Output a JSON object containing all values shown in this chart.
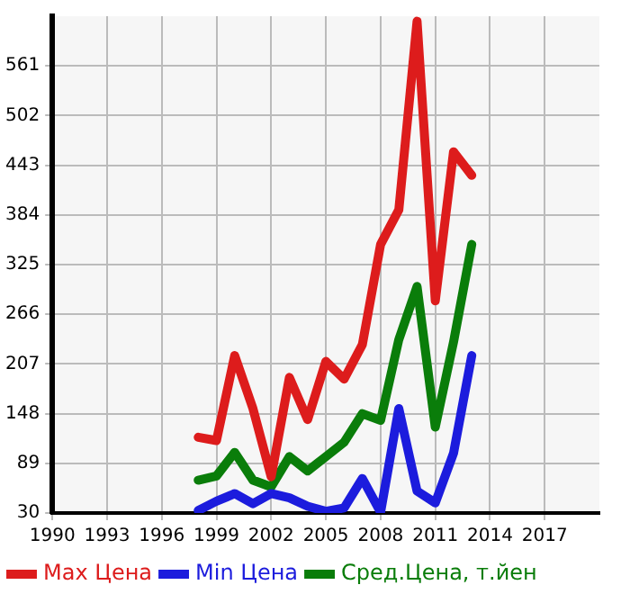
{
  "chart_data": {
    "type": "line",
    "x": [
      1998,
      1999,
      2000,
      2001,
      2002,
      2003,
      2004,
      2005,
      2006,
      2007,
      2008,
      2009,
      2010,
      2011,
      2012,
      2013
    ],
    "series": [
      {
        "name": "Max Цена",
        "color": "#dd1c1c",
        "values": [
          120,
          116,
          217,
          154,
          73,
          191,
          141,
          210,
          189,
          230,
          349,
          390,
          614,
          282,
          459,
          431
        ]
      },
      {
        "name": "Min Цена",
        "color": "#1c1cdd",
        "values": [
          33,
          44,
          53,
          41,
          53,
          48,
          38,
          32,
          36,
          71,
          31,
          154,
          56,
          42,
          101,
          217
        ]
      },
      {
        "name": "Сред.Цена, т.йен",
        "color": "#0a7d0a",
        "values": [
          69,
          74,
          102,
          69,
          61,
          97,
          80,
          97,
          114,
          148,
          140,
          236,
          299,
          132,
          233,
          349
        ]
      }
    ],
    "xlim": [
      1990,
      2020
    ],
    "xticks": [
      1990,
      1993,
      1996,
      1999,
      2002,
      2005,
      2008,
      2011,
      2014,
      2017
    ],
    "ylim": [
      30,
      620
    ],
    "yticks": [
      30,
      89,
      148,
      207,
      266,
      325,
      384,
      443,
      502,
      561
    ],
    "grid": true,
    "legend": "bottom",
    "marker": "none",
    "line_style": "solid"
  }
}
